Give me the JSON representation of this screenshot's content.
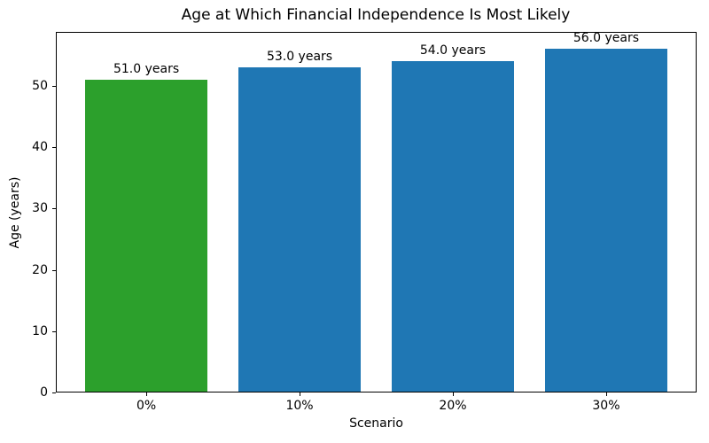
{
  "chart_data": {
    "type": "bar",
    "title": "Age at Which Financial Independence Is Most Likely",
    "xlabel": "Scenario",
    "ylabel": "Age (years)",
    "categories": [
      "0%",
      "10%",
      "20%",
      "30%"
    ],
    "values": [
      51.0,
      53.0,
      54.0,
      56.0
    ],
    "bar_labels": [
      "51.0 years",
      "53.0 years",
      "54.0 years",
      "56.0 years"
    ],
    "bar_colors": [
      "#2ca02c",
      "#1f77b4",
      "#1f77b4",
      "#1f77b4"
    ],
    "yticks": [
      0,
      10,
      20,
      30,
      40,
      50
    ],
    "ylim": [
      0,
      58.8
    ],
    "grid": false,
    "legend": "none",
    "colors": {
      "bar_default": "#1f77b4",
      "bar_highlight": "#2ca02c",
      "axis": "#000000",
      "text": "#000000",
      "background": "#ffffff"
    }
  }
}
